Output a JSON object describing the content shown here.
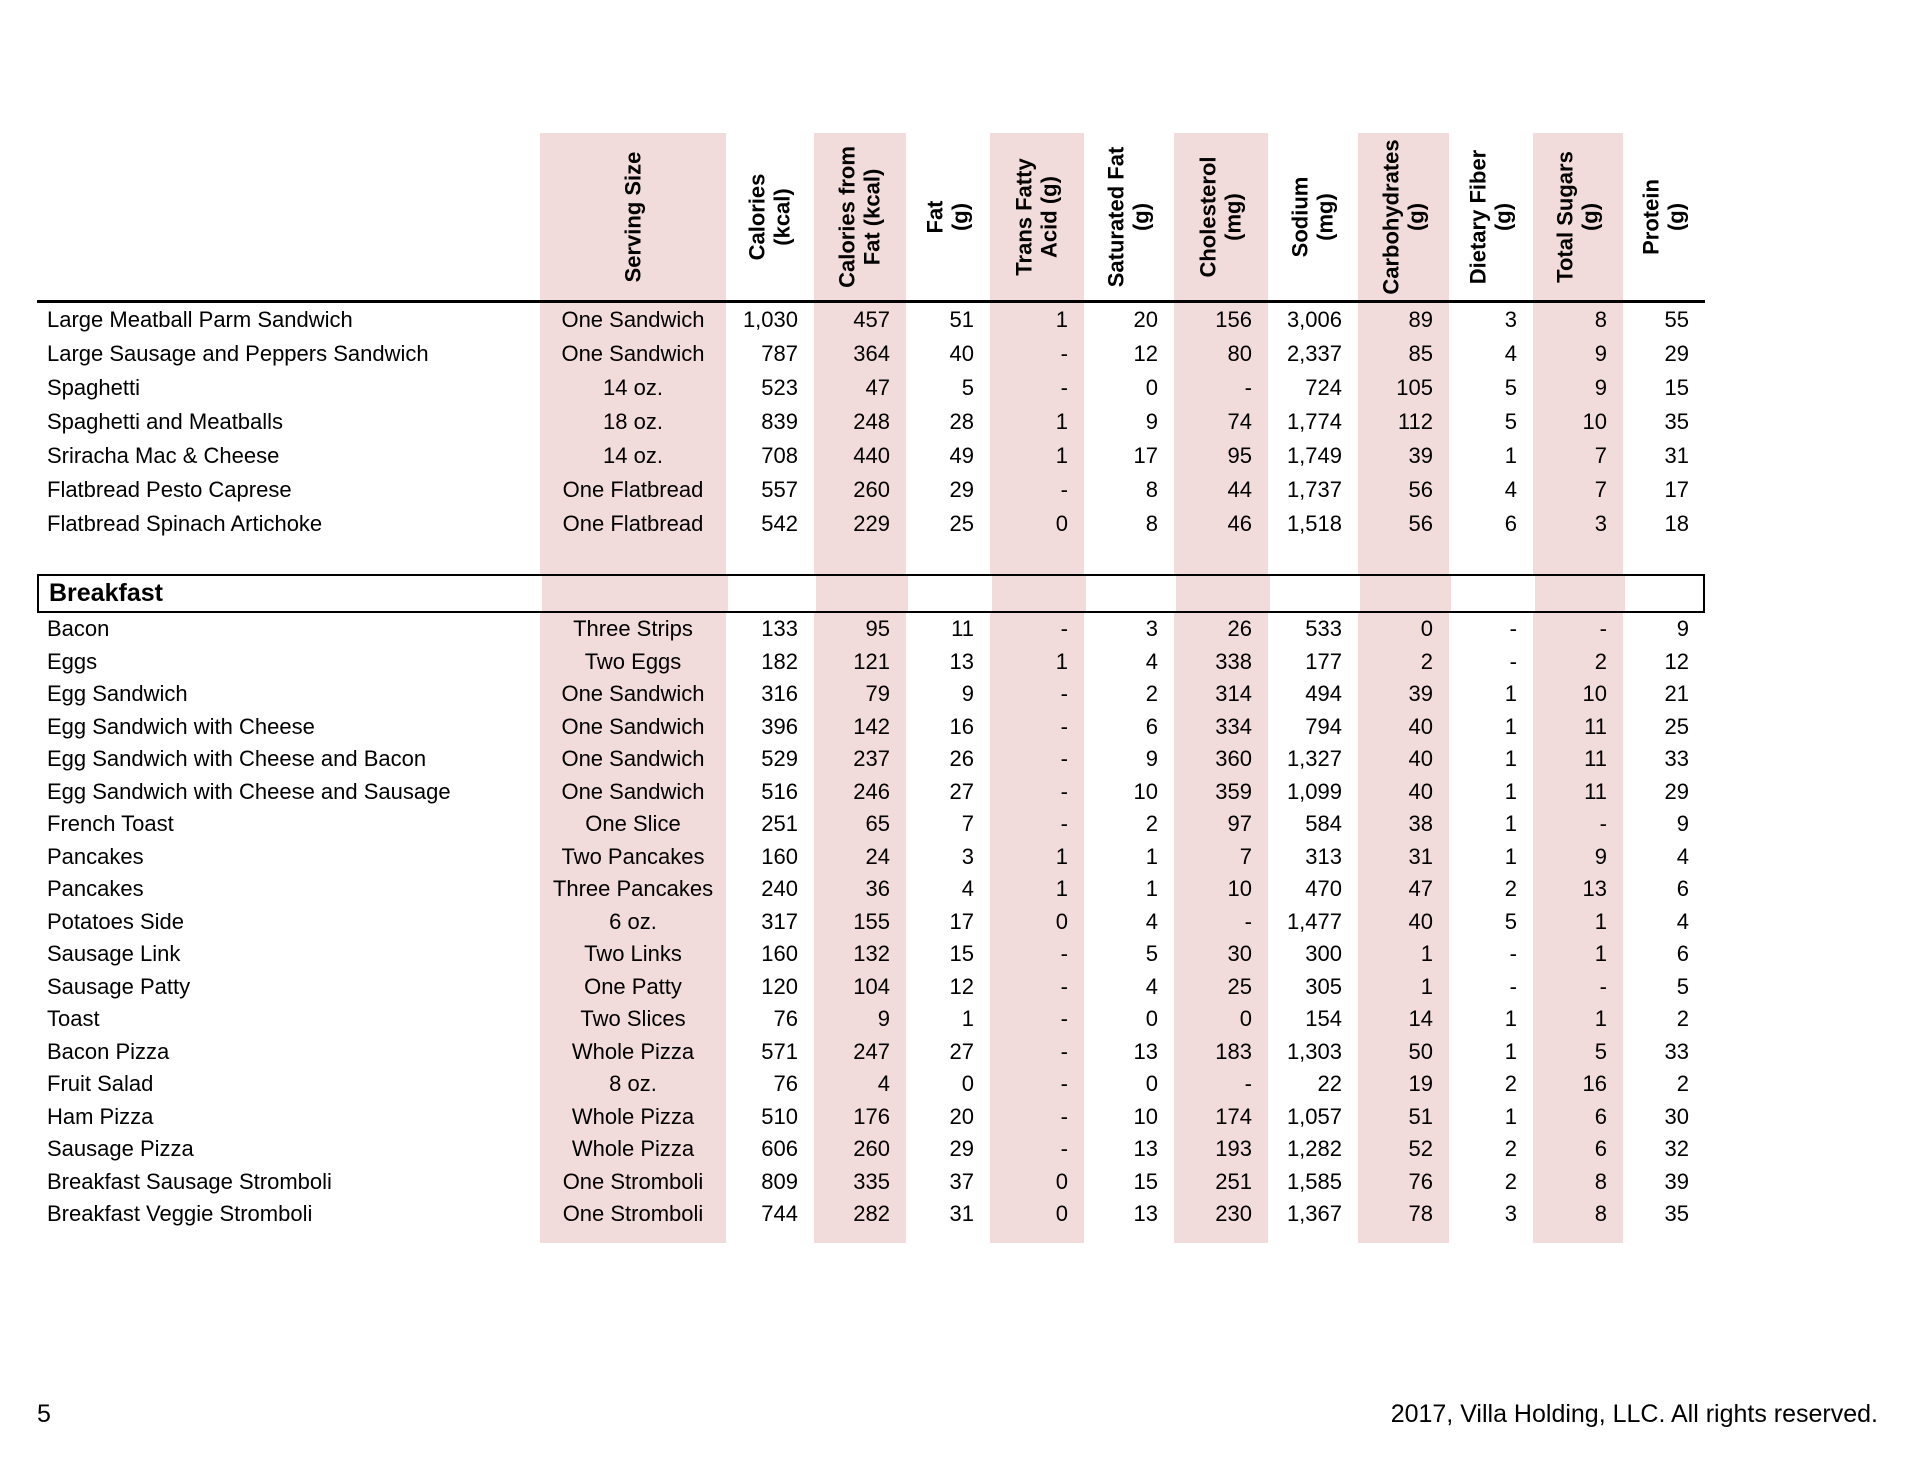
{
  "page": {
    "number": "5",
    "copyright": "2017, Villa Holding, LLC. All rights reserved."
  },
  "table": {
    "columns": [
      {
        "label": "Serving Size",
        "shaded": true
      },
      {
        "label": "Calories\n(kcal)",
        "shaded": false
      },
      {
        "label": "Calories from\nFat (kcal)",
        "shaded": true
      },
      {
        "label": "Fat\n(g)",
        "shaded": false
      },
      {
        "label": "Trans Fatty\nAcid (g)",
        "shaded": true
      },
      {
        "label": "Saturated Fat\n(g)",
        "shaded": false
      },
      {
        "label": "Cholesterol\n(mg)",
        "shaded": true
      },
      {
        "label": "Sodium\n(mg)",
        "shaded": false
      },
      {
        "label": "Carbohydrates\n(g)",
        "shaded": true
      },
      {
        "label": "Dietary Fiber\n(g)",
        "shaded": false
      },
      {
        "label": "Total Sugars\n(g)",
        "shaded": true
      },
      {
        "label": "Protein\n(g)",
        "shaded": false
      }
    ],
    "sections": [
      {
        "title": "",
        "rows": [
          {
            "name": "Large Meatball Parm Sandwich",
            "values": [
              "One Sandwich",
              "1,030",
              "457",
              "51",
              "1",
              "20",
              "156",
              "3,006",
              "89",
              "3",
              "8",
              "55"
            ]
          },
          {
            "name": "Large Sausage and Peppers Sandwich",
            "values": [
              "One Sandwich",
              "787",
              "364",
              "40",
              "-",
              "12",
              "80",
              "2,337",
              "85",
              "4",
              "9",
              "29"
            ]
          },
          {
            "name": "Spaghetti",
            "values": [
              "14 oz.",
              "523",
              "47",
              "5",
              "-",
              "0",
              "-",
              "724",
              "105",
              "5",
              "9",
              "15"
            ]
          },
          {
            "name": "Spaghetti and Meatballs",
            "values": [
              "18 oz.",
              "839",
              "248",
              "28",
              "1",
              "9",
              "74",
              "1,774",
              "112",
              "5",
              "10",
              "35"
            ]
          },
          {
            "name": "Sriracha Mac & Cheese",
            "values": [
              "14 oz.",
              "708",
              "440",
              "49",
              "1",
              "17",
              "95",
              "1,749",
              "39",
              "1",
              "7",
              "31"
            ]
          },
          {
            "name": "Flatbread Pesto Caprese",
            "values": [
              "One Flatbread",
              "557",
              "260",
              "29",
              "-",
              "8",
              "44",
              "1,737",
              "56",
              "4",
              "7",
              "17"
            ]
          },
          {
            "name": "Flatbread Spinach Artichoke",
            "values": [
              "One Flatbread",
              "542",
              "229",
              "25",
              "0",
              "8",
              "46",
              "1,518",
              "56",
              "6",
              "3",
              "18"
            ]
          }
        ]
      },
      {
        "title": "Breakfast",
        "rows": [
          {
            "name": "Bacon",
            "values": [
              "Three Strips",
              "133",
              "95",
              "11",
              "-",
              "3",
              "26",
              "533",
              "0",
              "-",
              "-",
              "9"
            ]
          },
          {
            "name": "Eggs",
            "values": [
              "Two Eggs",
              "182",
              "121",
              "13",
              "1",
              "4",
              "338",
              "177",
              "2",
              "-",
              "2",
              "12"
            ]
          },
          {
            "name": "Egg Sandwich",
            "values": [
              "One Sandwich",
              "316",
              "79",
              "9",
              "-",
              "2",
              "314",
              "494",
              "39",
              "1",
              "10",
              "21"
            ]
          },
          {
            "name": "Egg Sandwich with Cheese",
            "values": [
              "One Sandwich",
              "396",
              "142",
              "16",
              "-",
              "6",
              "334",
              "794",
              "40",
              "1",
              "11",
              "25"
            ]
          },
          {
            "name": "Egg Sandwich with Cheese and Bacon",
            "values": [
              "One Sandwich",
              "529",
              "237",
              "26",
              "-",
              "9",
              "360",
              "1,327",
              "40",
              "1",
              "11",
              "33"
            ]
          },
          {
            "name": "Egg Sandwich with Cheese and Sausage",
            "values": [
              "One Sandwich",
              "516",
              "246",
              "27",
              "-",
              "10",
              "359",
              "1,099",
              "40",
              "1",
              "11",
              "29"
            ]
          },
          {
            "name": "French Toast",
            "values": [
              "One Slice",
              "251",
              "65",
              "7",
              "-",
              "2",
              "97",
              "584",
              "38",
              "1",
              "-",
              "9"
            ]
          },
          {
            "name": "Pancakes",
            "values": [
              "Two Pancakes",
              "160",
              "24",
              "3",
              "1",
              "1",
              "7",
              "313",
              "31",
              "1",
              "9",
              "4"
            ]
          },
          {
            "name": "Pancakes",
            "values": [
              "Three Pancakes",
              "240",
              "36",
              "4",
              "1",
              "1",
              "10",
              "470",
              "47",
              "2",
              "13",
              "6"
            ]
          },
          {
            "name": "Potatoes Side",
            "values": [
              "6 oz.",
              "317",
              "155",
              "17",
              "0",
              "4",
              "-",
              "1,477",
              "40",
              "5",
              "1",
              "4"
            ]
          },
          {
            "name": "Sausage Link",
            "values": [
              "Two Links",
              "160",
              "132",
              "15",
              "-",
              "5",
              "30",
              "300",
              "1",
              "-",
              "1",
              "6"
            ]
          },
          {
            "name": "Sausage Patty",
            "values": [
              "One Patty",
              "120",
              "104",
              "12",
              "-",
              "4",
              "25",
              "305",
              "1",
              "-",
              "-",
              "5"
            ]
          },
          {
            "name": "Toast",
            "values": [
              "Two Slices",
              "76",
              "9",
              "1",
              "-",
              "0",
              "0",
              "154",
              "14",
              "1",
              "1",
              "2"
            ]
          },
          {
            "name": "Bacon Pizza",
            "values": [
              "Whole Pizza",
              "571",
              "247",
              "27",
              "-",
              "13",
              "183",
              "1,303",
              "50",
              "1",
              "5",
              "33"
            ]
          },
          {
            "name": "Fruit Salad",
            "values": [
              "8 oz.",
              "76",
              "4",
              "0",
              "-",
              "0",
              "-",
              "22",
              "19",
              "2",
              "16",
              "2"
            ]
          },
          {
            "name": "Ham Pizza",
            "values": [
              "Whole Pizza",
              "510",
              "176",
              "20",
              "-",
              "10",
              "174",
              "1,057",
              "51",
              "1",
              "6",
              "30"
            ]
          },
          {
            "name": "Sausage Pizza",
            "values": [
              "Whole Pizza",
              "606",
              "260",
              "29",
              "-",
              "13",
              "193",
              "1,282",
              "52",
              "2",
              "6",
              "32"
            ]
          },
          {
            "name": "Breakfast Sausage Stromboli",
            "values": [
              "One Stromboli",
              "809",
              "335",
              "37",
              "0",
              "15",
              "251",
              "1,585",
              "76",
              "2",
              "8",
              "39"
            ]
          },
          {
            "name": "Breakfast Veggie Stromboli",
            "values": [
              "One Stromboli",
              "744",
              "282",
              "31",
              "0",
              "13",
              "230",
              "1,367",
              "78",
              "3",
              "8",
              "35"
            ]
          }
        ]
      }
    ]
  }
}
